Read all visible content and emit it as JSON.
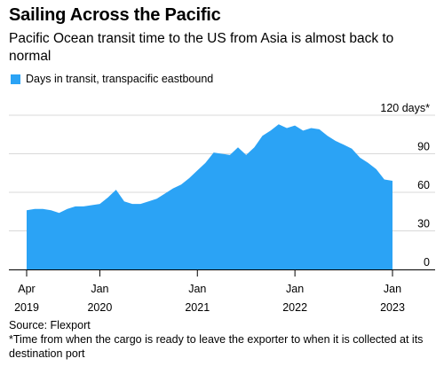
{
  "title": "Sailing Across the Pacific",
  "subtitle": "Pacific Ocean transit time to the US from Asia is almost back to normal",
  "legend_label": "Days in transit, transpacific eastbound",
  "source": "Source: Flexport",
  "note": "*Time from when the cargo is ready to leave the exporter to when it is collected at its destination port",
  "colors": {
    "area": "#2ba3f5",
    "grid": "#d9d9d9",
    "axis": "#000000"
  },
  "chart_data": {
    "type": "area",
    "x_unit": "months since Apr 2019",
    "ylim": [
      0,
      120
    ],
    "y_ticks": [
      {
        "value": 120,
        "label": "120 days*"
      },
      {
        "value": 90,
        "label": "90"
      },
      {
        "value": 60,
        "label": "60"
      },
      {
        "value": 30,
        "label": "30"
      },
      {
        "value": 0,
        "label": "0"
      }
    ],
    "x_ticks": [
      {
        "month": "Apr",
        "year": "2019"
      },
      {
        "month": "Jan",
        "year": "2020"
      },
      {
        "month": "Jan",
        "year": "2021"
      },
      {
        "month": "Jan",
        "year": "2022"
      },
      {
        "month": "Jan",
        "year": "2023"
      }
    ],
    "series": [
      {
        "name": "Days in transit, transpacific eastbound",
        "points": [
          {
            "date": "2019-04",
            "value": 46
          },
          {
            "date": "2019-05",
            "value": 47
          },
          {
            "date": "2019-06",
            "value": 47
          },
          {
            "date": "2019-07",
            "value": 46
          },
          {
            "date": "2019-08",
            "value": 44
          },
          {
            "date": "2019-09",
            "value": 47
          },
          {
            "date": "2019-10",
            "value": 49
          },
          {
            "date": "2019-11",
            "value": 49
          },
          {
            "date": "2019-12",
            "value": 50
          },
          {
            "date": "2020-01",
            "value": 51
          },
          {
            "date": "2020-02",
            "value": 56
          },
          {
            "date": "2020-03",
            "value": 62
          },
          {
            "date": "2020-04",
            "value": 53
          },
          {
            "date": "2020-05",
            "value": 51
          },
          {
            "date": "2020-06",
            "value": 51
          },
          {
            "date": "2020-07",
            "value": 53
          },
          {
            "date": "2020-08",
            "value": 55
          },
          {
            "date": "2020-09",
            "value": 59
          },
          {
            "date": "2020-10",
            "value": 63
          },
          {
            "date": "2020-11",
            "value": 66
          },
          {
            "date": "2020-12",
            "value": 71
          },
          {
            "date": "2021-01",
            "value": 77
          },
          {
            "date": "2021-02",
            "value": 83
          },
          {
            "date": "2021-03",
            "value": 91
          },
          {
            "date": "2021-04",
            "value": 90
          },
          {
            "date": "2021-05",
            "value": 89
          },
          {
            "date": "2021-06",
            "value": 95
          },
          {
            "date": "2021-07",
            "value": 89
          },
          {
            "date": "2021-08",
            "value": 95
          },
          {
            "date": "2021-09",
            "value": 104
          },
          {
            "date": "2021-10",
            "value": 108
          },
          {
            "date": "2021-11",
            "value": 113
          },
          {
            "date": "2021-12",
            "value": 110
          },
          {
            "date": "2022-01",
            "value": 112
          },
          {
            "date": "2022-02",
            "value": 108
          },
          {
            "date": "2022-03",
            "value": 110
          },
          {
            "date": "2022-04",
            "value": 109
          },
          {
            "date": "2022-05",
            "value": 104
          },
          {
            "date": "2022-06",
            "value": 100
          },
          {
            "date": "2022-07",
            "value": 97
          },
          {
            "date": "2022-08",
            "value": 94
          },
          {
            "date": "2022-09",
            "value": 87
          },
          {
            "date": "2022-10",
            "value": 83
          },
          {
            "date": "2022-11",
            "value": 78
          },
          {
            "date": "2022-12",
            "value": 70
          },
          {
            "date": "2023-01",
            "value": 69
          }
        ]
      }
    ]
  }
}
